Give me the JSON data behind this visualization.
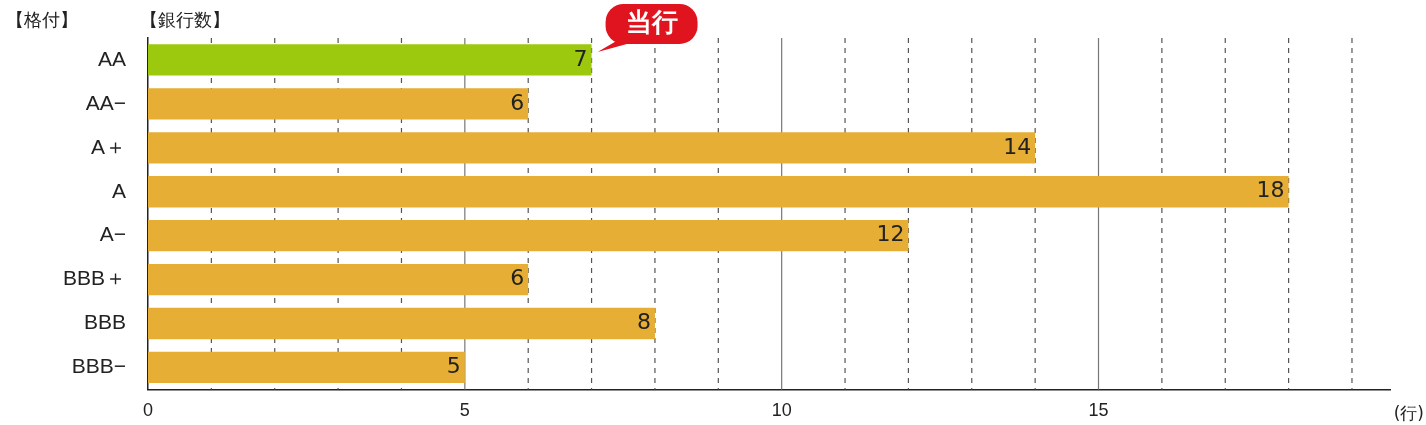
{
  "chart_data": {
    "type": "bar",
    "orientation": "horizontal",
    "title": "【銀行数】",
    "ylabel": "【格付】",
    "xlabel": "(行)",
    "categories": [
      "AA",
      "AA−",
      "A＋",
      "A",
      "A−",
      "BBB＋",
      "BBB",
      "BBB−"
    ],
    "values": [
      7,
      6,
      14,
      18,
      12,
      6,
      8,
      5
    ],
    "colors": [
      "#9cc80e",
      "#e6ae34",
      "#e6ae34",
      "#e6ae34",
      "#e6ae34",
      "#e6ae34",
      "#e6ae34",
      "#e6ae34"
    ],
    "xlim": [
      0,
      19.6
    ],
    "xticks": [
      0,
      {
        "value": 1,
        "label": null
      },
      {
        "value": 2,
        "label": null
      },
      {
        "value": 3,
        "label": null
      },
      {
        "value": 4,
        "label": null
      },
      5,
      {
        "value": 6,
        "label": null
      },
      {
        "value": 7,
        "label": null
      },
      {
        "value": 8,
        "label": null
      },
      {
        "value": 9,
        "label": null
      },
      10,
      {
        "value": 11,
        "label": null
      },
      {
        "value": 12,
        "label": null
      },
      {
        "value": 13,
        "label": null
      },
      {
        "value": 14,
        "label": null
      },
      15,
      {
        "value": 16,
        "label": null
      },
      {
        "value": 17,
        "label": null
      },
      {
        "value": 18,
        "label": null
      },
      {
        "value": 19,
        "label": null
      }
    ],
    "grid": true,
    "data_labels": true,
    "annotations": [
      {
        "text": "当行",
        "x": 7,
        "y": "AA"
      }
    ]
  }
}
